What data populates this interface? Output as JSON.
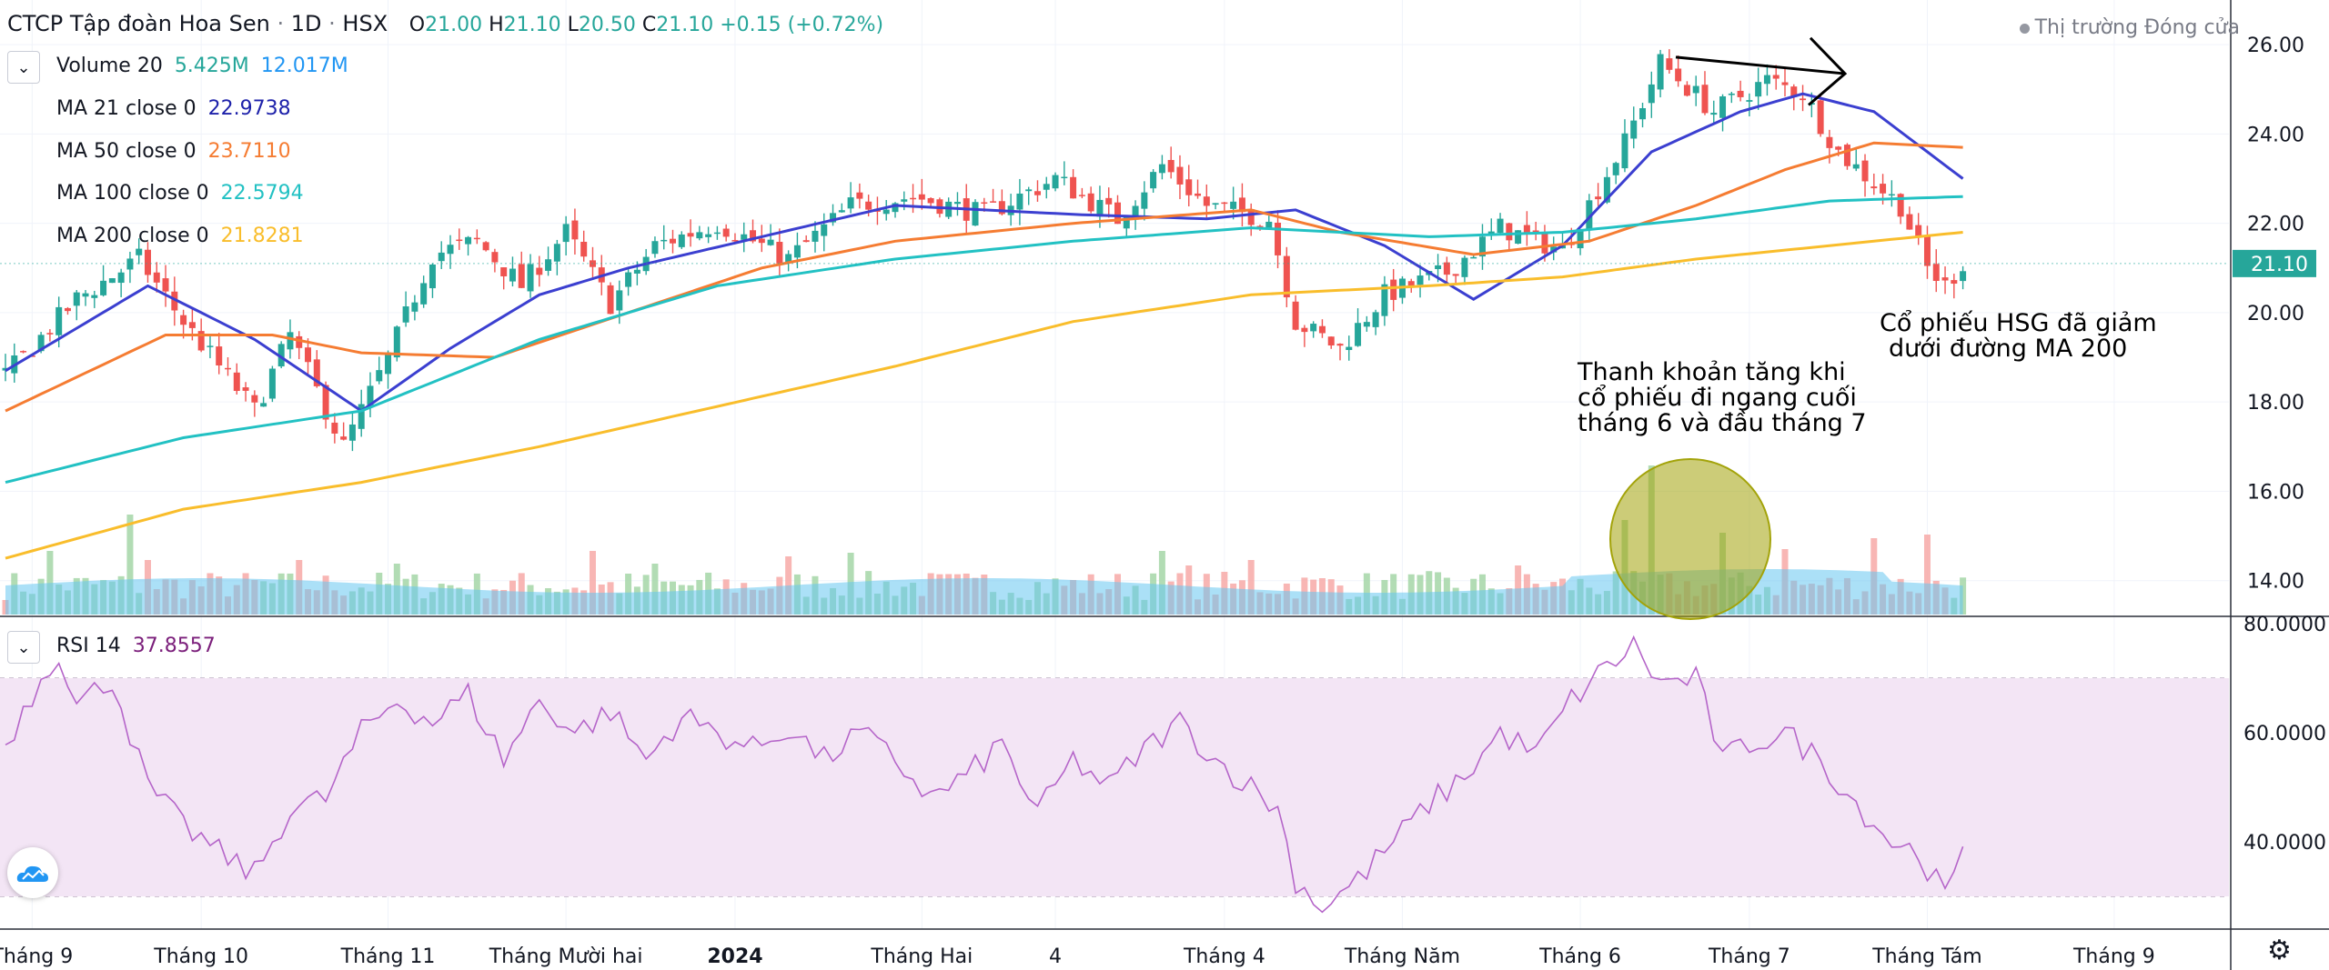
{
  "header": {
    "symbol_title": "CTCP Tập đoàn Hoa Sen",
    "interval": "1D",
    "exchange": "HSX",
    "open_label": "O",
    "open": "21.00",
    "high_label": "H",
    "high": "21.10",
    "low_label": "L",
    "low": "20.50",
    "close_label": "C",
    "close": "21.10",
    "change": "+0.15 (+0.72%)"
  },
  "market_status": "Thị trường Đóng cửa",
  "legend": {
    "volume": {
      "name": "Volume 20",
      "value1": "5.425M",
      "value2": "12.017M"
    },
    "ma21": {
      "name": "MA 21 close 0",
      "value": "22.9738",
      "color": "#1e22aa"
    },
    "ma50": {
      "name": "MA 50 close 0",
      "value": "23.7110",
      "color": "#f57c32"
    },
    "ma100": {
      "name": "MA 100 close 0",
      "value": "22.5794",
      "color": "#22c1c3"
    },
    "ma200": {
      "name": "MA 200 close 0",
      "value": "21.8281",
      "color": "#f9bd2b"
    },
    "rsi": {
      "name": "RSI 14",
      "value": "37.8557",
      "color": "#7b1f7b"
    }
  },
  "annotations": {
    "liquidity_note": [
      "Thanh khoản tăng khi",
      "cổ phiếu đi ngang cuối",
      "tháng 6 và đầu tháng 7"
    ],
    "ma200_note": [
      "Cổ phiếu HSG đã giảm",
      "dưới đường MA 200"
    ]
  },
  "colors": {
    "up": "#26a69a",
    "down": "#ef5350",
    "vol_up": "#a5d6a7",
    "vol_down": "#f7a9a7",
    "vol_ma": "#66c6f0",
    "rsi_line": "#b565c9",
    "rsi_band": "#f3e5f5",
    "price_badge": "#26a69a",
    "circle": "#a3a30a"
  },
  "chart_data": [
    {
      "type": "candlestick",
      "title": "CTCP Tập đoàn Hoa Sen · 1D · HSX",
      "ylim": [
        13.2,
        27.0
      ],
      "y_ticks": [
        "26.00",
        "24.00",
        "22.00",
        "20.00",
        "18.00",
        "16.00",
        "14.00"
      ],
      "last_price": "21.10",
      "x_tick_labels": [
        "Tháng 9",
        "Tháng 10",
        "Tháng 11",
        "Tháng Mười hai",
        "2024",
        "Tháng Hai",
        "4",
        "Tháng 4",
        "Tháng Năm",
        "Tháng 6",
        "Tháng 7",
        "Tháng Tám",
        "Tháng 9"
      ],
      "close_anchors": [
        [
          0,
          18.6
        ],
        [
          8,
          20.3
        ],
        [
          15,
          21.2
        ],
        [
          20,
          19.8
        ],
        [
          28,
          17.8
        ],
        [
          32,
          19.5
        ],
        [
          38,
          17.0
        ],
        [
          43,
          19.0
        ],
        [
          48,
          21.3
        ],
        [
          53,
          21.6
        ],
        [
          58,
          20.6
        ],
        [
          63,
          21.8
        ],
        [
          68,
          20.2
        ],
        [
          73,
          21.5
        ],
        [
          80,
          22.0
        ],
        [
          88,
          21.2
        ],
        [
          95,
          22.4
        ],
        [
          102,
          22.6
        ],
        [
          110,
          22.2
        ],
        [
          118,
          23.0
        ],
        [
          125,
          22.1
        ],
        [
          130,
          23.3
        ],
        [
          135,
          22.4
        ],
        [
          142,
          22.1
        ],
        [
          145,
          19.8
        ],
        [
          150,
          19.2
        ],
        [
          155,
          20.4
        ],
        [
          162,
          20.9
        ],
        [
          168,
          21.9
        ],
        [
          175,
          21.4
        ],
        [
          182,
          23.8
        ],
        [
          186,
          25.6
        ],
        [
          192,
          24.5
        ],
        [
          198,
          25.2
        ],
        [
          202,
          24.9
        ],
        [
          206,
          23.6
        ],
        [
          210,
          22.9
        ],
        [
          213,
          22.4
        ],
        [
          216,
          21.0
        ],
        [
          218,
          20.6
        ],
        [
          220,
          21.1
        ]
      ],
      "moving_averages": [
        {
          "name": "MA 21",
          "color": "#3b3fd0",
          "anchors": [
            [
              0,
              18.7
            ],
            [
              16,
              20.6
            ],
            [
              28,
              19.4
            ],
            [
              40,
              17.8
            ],
            [
              50,
              19.2
            ],
            [
              60,
              20.4
            ],
            [
              70,
              21.0
            ],
            [
              85,
              21.7
            ],
            [
              100,
              22.4
            ],
            [
              120,
              22.2
            ],
            [
              135,
              22.1
            ],
            [
              145,
              22.3
            ],
            [
              155,
              21.5
            ],
            [
              165,
              20.3
            ],
            [
              175,
              21.5
            ],
            [
              185,
              23.6
            ],
            [
              195,
              24.5
            ],
            [
              202,
              24.9
            ],
            [
              210,
              24.5
            ],
            [
              220,
              23.0
            ]
          ]
        },
        {
          "name": "MA 50",
          "color": "#f57c32",
          "anchors": [
            [
              0,
              17.8
            ],
            [
              18,
              19.5
            ],
            [
              30,
              19.5
            ],
            [
              40,
              19.1
            ],
            [
              55,
              19.0
            ],
            [
              70,
              20.0
            ],
            [
              85,
              21.0
            ],
            [
              100,
              21.6
            ],
            [
              120,
              22.0
            ],
            [
              140,
              22.3
            ],
            [
              150,
              21.8
            ],
            [
              165,
              21.3
            ],
            [
              178,
              21.6
            ],
            [
              190,
              22.4
            ],
            [
              200,
              23.2
            ],
            [
              210,
              23.8
            ],
            [
              220,
              23.7
            ]
          ]
        },
        {
          "name": "MA 100",
          "color": "#22c1c3",
          "anchors": [
            [
              0,
              16.2
            ],
            [
              20,
              17.2
            ],
            [
              40,
              17.8
            ],
            [
              60,
              19.4
            ],
            [
              80,
              20.6
            ],
            [
              100,
              21.2
            ],
            [
              120,
              21.6
            ],
            [
              140,
              21.9
            ],
            [
              160,
              21.7
            ],
            [
              175,
              21.8
            ],
            [
              190,
              22.1
            ],
            [
              205,
              22.5
            ],
            [
              220,
              22.6
            ]
          ]
        },
        {
          "name": "MA 200",
          "color": "#f9bd2b",
          "anchors": [
            [
              0,
              14.5
            ],
            [
              20,
              15.6
            ],
            [
              40,
              16.2
            ],
            [
              60,
              17.0
            ],
            [
              80,
              17.9
            ],
            [
              100,
              18.8
            ],
            [
              120,
              19.8
            ],
            [
              140,
              20.4
            ],
            [
              160,
              20.6
            ],
            [
              175,
              20.8
            ],
            [
              190,
              21.2
            ],
            [
              205,
              21.5
            ],
            [
              220,
              21.8
            ]
          ]
        }
      ]
    },
    {
      "type": "bar",
      "title": "Volume 20",
      "series_name": "Volume",
      "values_note": "relative daily volume (0-1 of panel max)",
      "spikes": [
        [
          5,
          0.35
        ],
        [
          14,
          0.55
        ],
        [
          16,
          0.3
        ],
        [
          33,
          0.3
        ],
        [
          44,
          0.28
        ],
        [
          66,
          0.35
        ],
        [
          73,
          0.28
        ],
        [
          88,
          0.32
        ],
        [
          95,
          0.34
        ],
        [
          110,
          0.22
        ],
        [
          130,
          0.35
        ],
        [
          133,
          0.27
        ],
        [
          140,
          0.3
        ],
        [
          148,
          0.2
        ],
        [
          170,
          0.27
        ],
        [
          182,
          0.52
        ],
        [
          185,
          0.82
        ],
        [
          193,
          0.45
        ],
        [
          200,
          0.36
        ],
        [
          210,
          0.42
        ],
        [
          216,
          0.44
        ]
      ],
      "ma_level_note": "Volume MA 20 average level"
    },
    {
      "type": "line",
      "title": "RSI 14",
      "ylim": [
        24,
        81
      ],
      "y_ticks": [
        "80.0000",
        "60.0000",
        "40.0000"
      ],
      "band": [
        30,
        70
      ],
      "last_value": "37.8557",
      "anchors": [
        [
          0,
          58
        ],
        [
          4,
          70
        ],
        [
          6,
          75
        ],
        [
          8,
          65
        ],
        [
          12,
          70
        ],
        [
          14,
          60
        ],
        [
          16,
          50
        ],
        [
          20,
          43
        ],
        [
          24,
          38
        ],
        [
          28,
          34
        ],
        [
          32,
          46
        ],
        [
          36,
          48
        ],
        [
          40,
          60
        ],
        [
          44,
          66
        ],
        [
          48,
          62
        ],
        [
          52,
          67
        ],
        [
          56,
          55
        ],
        [
          60,
          66
        ],
        [
          64,
          60
        ],
        [
          68,
          64
        ],
        [
          72,
          55
        ],
        [
          76,
          63
        ],
        [
          80,
          60
        ],
        [
          84,
          57
        ],
        [
          88,
          61
        ],
        [
          92,
          55
        ],
        [
          96,
          60
        ],
        [
          100,
          55
        ],
        [
          104,
          48
        ],
        [
          108,
          52
        ],
        [
          112,
          58
        ],
        [
          116,
          45
        ],
        [
          120,
          55
        ],
        [
          124,
          50
        ],
        [
          128,
          57
        ],
        [
          132,
          62
        ],
        [
          136,
          55
        ],
        [
          140,
          50
        ],
        [
          143,
          46
        ],
        [
          145,
          33
        ],
        [
          148,
          28
        ],
        [
          152,
          33
        ],
        [
          156,
          40
        ],
        [
          160,
          47
        ],
        [
          164,
          52
        ],
        [
          168,
          60
        ],
        [
          172,
          56
        ],
        [
          176,
          66
        ],
        [
          180,
          72
        ],
        [
          183,
          76
        ],
        [
          186,
          69
        ],
        [
          190,
          70
        ],
        [
          193,
          55
        ],
        [
          196,
          58
        ],
        [
          200,
          60
        ],
        [
          204,
          55
        ],
        [
          208,
          47
        ],
        [
          212,
          40
        ],
        [
          215,
          38
        ],
        [
          218,
          30
        ],
        [
          220,
          37
        ]
      ]
    }
  ]
}
